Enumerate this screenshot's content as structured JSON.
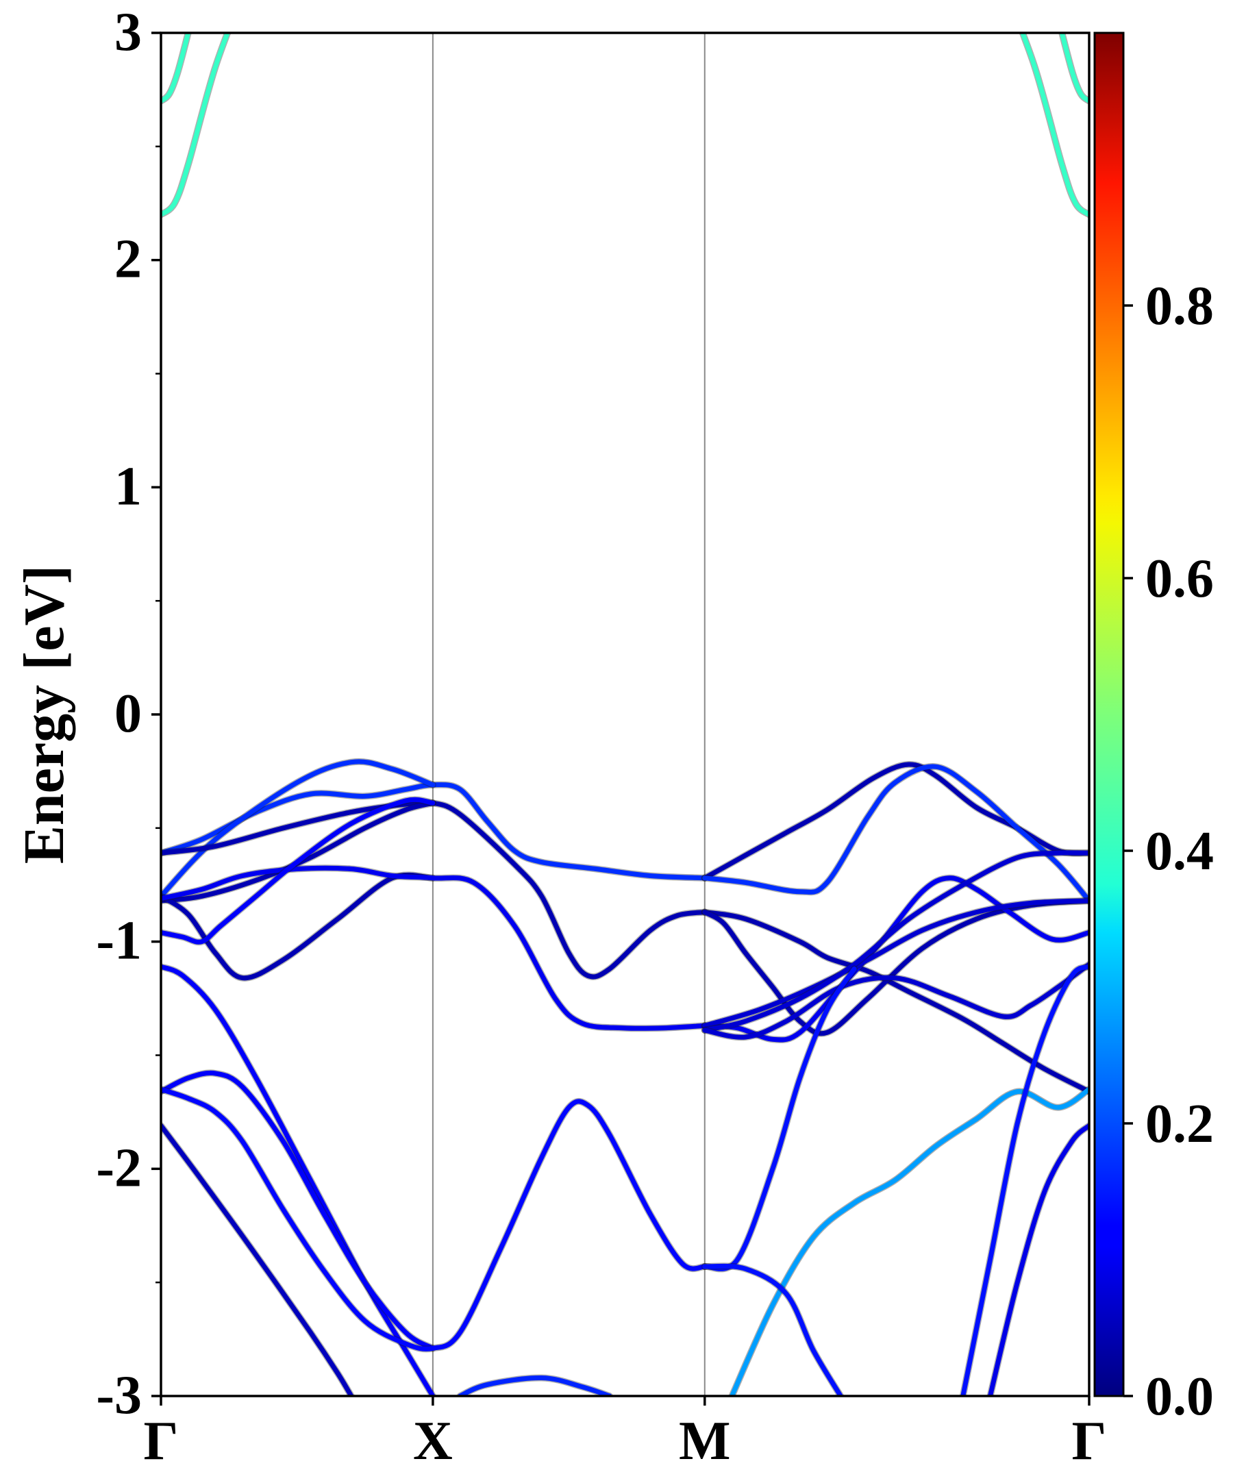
{
  "chart_data": {
    "type": "line",
    "title": "",
    "xlabel": "",
    "ylabel": "Energy [eV]",
    "ylim": [
      -3,
      3
    ],
    "y_ticks": [
      "-3",
      "-2",
      "-1",
      "0",
      "1",
      "2",
      "3"
    ],
    "y_minor_step": 0.5,
    "k_path": [
      {
        "label": "Γ",
        "k": 0
      },
      {
        "label": "X",
        "k": 1
      },
      {
        "label": "M",
        "k": 2
      },
      {
        "label": "Γ",
        "k": 3.414
      }
    ],
    "grid": "vertical lines at high-symmetry points",
    "colorbar": {
      "colormap": "jet",
      "range": [
        0,
        1
      ],
      "tick_labels": [
        "0.0",
        "0.2",
        "0.4",
        "0.6",
        "0.8"
      ]
    },
    "bands": [
      {
        "w": 0.43,
        "pts": [
          [
            0,
            2.2
          ],
          [
            0.05,
            2.25
          ],
          [
            0.1,
            2.42
          ],
          [
            0.2,
            2.85
          ],
          [
            0.31,
            3.2
          ]
        ]
      },
      {
        "w": 0.43,
        "pts": [
          [
            0,
            2.7
          ],
          [
            0.03,
            2.73
          ],
          [
            0.06,
            2.82
          ],
          [
            0.1,
            3.0
          ],
          [
            0.14,
            3.2
          ]
        ]
      },
      {
        "w": 0.43,
        "pts": [
          [
            3.414,
            2.2
          ],
          [
            3.364,
            2.25
          ],
          [
            3.314,
            2.42
          ],
          [
            3.214,
            2.85
          ],
          [
            3.104,
            3.2
          ]
        ]
      },
      {
        "w": 0.43,
        "pts": [
          [
            3.414,
            2.7
          ],
          [
            3.384,
            2.73
          ],
          [
            3.354,
            2.82
          ],
          [
            3.314,
            3.0
          ],
          [
            3.274,
            3.2
          ]
        ]
      },
      {
        "w": 0.17,
        "pts": [
          [
            0,
            -0.61
          ],
          [
            0.15,
            -0.55
          ],
          [
            0.35,
            -0.43
          ],
          [
            0.55,
            -0.35
          ],
          [
            0.75,
            -0.36
          ],
          [
            0.9,
            -0.33
          ],
          [
            1,
            -0.31
          ],
          [
            1.1,
            -0.33
          ],
          [
            1.2,
            -0.47
          ],
          [
            1.3,
            -0.6
          ],
          [
            1.4,
            -0.65
          ],
          [
            1.6,
            -0.68
          ],
          [
            1.8,
            -0.71
          ],
          [
            2,
            -0.72
          ]
        ]
      },
      {
        "w": 0.17,
        "pts": [
          [
            0,
            -0.8
          ],
          [
            0.2,
            -0.55
          ],
          [
            0.5,
            -0.3
          ],
          [
            0.7,
            -0.21
          ],
          [
            0.85,
            -0.24
          ],
          [
            1,
            -0.31
          ]
        ]
      },
      {
        "w": 0.05,
        "pts": [
          [
            0,
            -0.61
          ],
          [
            0.2,
            -0.58
          ],
          [
            0.45,
            -0.5
          ],
          [
            0.7,
            -0.43
          ],
          [
            0.9,
            -0.395
          ],
          [
            1,
            -0.39
          ],
          [
            1.1,
            -0.44
          ],
          [
            1.3,
            -0.66
          ],
          [
            1.4,
            -0.8
          ],
          [
            1.5,
            -1.05
          ],
          [
            1.57,
            -1.15
          ],
          [
            1.65,
            -1.12
          ],
          [
            1.8,
            -0.95
          ],
          [
            1.9,
            -0.885
          ],
          [
            2,
            -0.87
          ]
        ]
      },
      {
        "w": 0.05,
        "pts": [
          [
            0,
            -0.82
          ],
          [
            0.15,
            -0.8
          ],
          [
            0.35,
            -0.73
          ],
          [
            0.55,
            -0.63
          ],
          [
            0.75,
            -0.5
          ],
          [
            0.9,
            -0.42
          ],
          [
            1,
            -0.39
          ]
        ]
      },
      {
        "w": 0.05,
        "pts": [
          [
            0,
            -0.8
          ],
          [
            0.1,
            -0.88
          ],
          [
            0.2,
            -1.05
          ],
          [
            0.3,
            -1.16
          ],
          [
            0.45,
            -1.08
          ],
          [
            0.65,
            -0.9
          ],
          [
            0.85,
            -0.72
          ],
          [
            1,
            -0.72
          ]
        ]
      },
      {
        "w": 0.11,
        "pts": [
          [
            0,
            -0.81
          ],
          [
            0.15,
            -0.77
          ],
          [
            0.3,
            -0.71
          ],
          [
            0.5,
            -0.68
          ],
          [
            0.7,
            -0.68
          ],
          [
            0.85,
            -0.71
          ],
          [
            1,
            -0.72
          ],
          [
            1.15,
            -0.74
          ],
          [
            1.3,
            -0.93
          ],
          [
            1.45,
            -1.25
          ],
          [
            1.55,
            -1.36
          ],
          [
            1.7,
            -1.38
          ],
          [
            1.85,
            -1.38
          ],
          [
            2,
            -1.37
          ]
        ]
      },
      {
        "w": 0.12,
        "pts": [
          [
            0,
            -0.96
          ],
          [
            0.08,
            -0.98
          ],
          [
            0.15,
            -1.0
          ],
          [
            0.22,
            -0.93
          ],
          [
            0.35,
            -0.8
          ],
          [
            0.5,
            -0.65
          ],
          [
            0.7,
            -0.48
          ],
          [
            0.9,
            -0.38
          ],
          [
            1,
            -0.39
          ]
        ]
      },
      {
        "w": 0.05,
        "pts": [
          [
            2,
            -0.72
          ],
          [
            2.15,
            -0.62
          ],
          [
            2.3,
            -0.52
          ],
          [
            2.45,
            -0.42
          ],
          [
            2.62,
            -0.28
          ],
          [
            2.75,
            -0.22
          ],
          [
            2.85,
            -0.27
          ],
          [
            3.0,
            -0.41
          ],
          [
            3.15,
            -0.5
          ],
          [
            3.3,
            -0.6
          ],
          [
            3.414,
            -0.61
          ]
        ]
      },
      {
        "w": 0.17,
        "pts": [
          [
            2,
            -0.72
          ],
          [
            2.15,
            -0.74
          ],
          [
            2.35,
            -0.78
          ],
          [
            2.45,
            -0.74
          ],
          [
            2.6,
            -0.45
          ],
          [
            2.7,
            -0.3
          ],
          [
            2.85,
            -0.23
          ],
          [
            3.0,
            -0.34
          ],
          [
            3.15,
            -0.5
          ],
          [
            3.3,
            -0.66
          ],
          [
            3.414,
            -0.82
          ]
        ]
      },
      {
        "w": 0.05,
        "pts": [
          [
            2,
            -0.87
          ],
          [
            2.15,
            -0.9
          ],
          [
            2.35,
            -1.0
          ],
          [
            2.45,
            -1.07
          ],
          [
            2.6,
            -1.13
          ],
          [
            2.75,
            -1.22
          ],
          [
            2.95,
            -1.34
          ],
          [
            3.1,
            -1.45
          ],
          [
            3.25,
            -1.56
          ],
          [
            3.414,
            -1.66
          ]
        ]
      },
      {
        "w": 0.05,
        "pts": [
          [
            2,
            -0.87
          ],
          [
            2.07,
            -0.92
          ],
          [
            2.15,
            -1.05
          ],
          [
            2.25,
            -1.2
          ],
          [
            2.35,
            -1.35
          ],
          [
            2.45,
            -1.4
          ],
          [
            2.6,
            -1.25
          ],
          [
            2.8,
            -1.03
          ],
          [
            3.0,
            -0.9
          ],
          [
            3.2,
            -0.84
          ],
          [
            3.414,
            -0.82
          ]
        ]
      },
      {
        "w": 0.11,
        "pts": [
          [
            2,
            -1.37
          ],
          [
            2.12,
            -1.38
          ],
          [
            2.25,
            -1.43
          ],
          [
            2.35,
            -1.4
          ],
          [
            2.5,
            -1.2
          ],
          [
            2.65,
            -1.0
          ],
          [
            2.8,
            -0.78
          ],
          [
            2.9,
            -0.72
          ],
          [
            3.0,
            -0.77
          ],
          [
            3.12,
            -0.87
          ],
          [
            3.28,
            -0.99
          ],
          [
            3.414,
            -0.96
          ]
        ]
      },
      {
        "w": 0.08,
        "pts": [
          [
            2,
            -1.37
          ],
          [
            2.2,
            -1.3
          ],
          [
            2.4,
            -1.2
          ],
          [
            2.6,
            -1.08
          ],
          [
            2.8,
            -0.95
          ],
          [
            3.0,
            -0.87
          ],
          [
            3.2,
            -0.83
          ],
          [
            3.414,
            -0.82
          ]
        ]
      },
      {
        "w": 0.08,
        "pts": [
          [
            2,
            -1.39
          ],
          [
            2.15,
            -1.35
          ],
          [
            2.35,
            -1.25
          ],
          [
            2.55,
            -1.1
          ],
          [
            2.75,
            -0.9
          ],
          [
            2.95,
            -0.75
          ],
          [
            3.15,
            -0.63
          ],
          [
            3.3,
            -0.61
          ],
          [
            3.414,
            -0.61
          ]
        ]
      },
      {
        "w": 0.08,
        "pts": [
          [
            2,
            -1.39
          ],
          [
            2.15,
            -1.42
          ],
          [
            2.3,
            -1.35
          ],
          [
            2.5,
            -1.2
          ],
          [
            2.7,
            -1.16
          ],
          [
            2.9,
            -1.24
          ],
          [
            3.1,
            -1.33
          ],
          [
            3.2,
            -1.28
          ],
          [
            3.3,
            -1.2
          ],
          [
            3.414,
            -1.1
          ]
        ]
      },
      {
        "w": 0.14,
        "pts": [
          [
            2,
            -2.43
          ],
          [
            2.12,
            -2.4
          ],
          [
            2.25,
            -2.0
          ],
          [
            2.35,
            -1.6
          ],
          [
            2.45,
            -1.3
          ],
          [
            2.55,
            -1.12
          ]
        ]
      },
      {
        "w": 0.12,
        "pts": [
          [
            0,
            -1.11
          ],
          [
            0.08,
            -1.15
          ],
          [
            0.2,
            -1.3
          ],
          [
            0.35,
            -1.6
          ],
          [
            0.55,
            -2.05
          ],
          [
            0.75,
            -2.5
          ],
          [
            0.9,
            -2.8
          ],
          [
            1.0,
            -3.0
          ]
        ]
      },
      {
        "w": 0.12,
        "pts": [
          [
            0,
            -1.66
          ],
          [
            0.1,
            -1.6
          ],
          [
            0.2,
            -1.58
          ],
          [
            0.3,
            -1.64
          ],
          [
            0.45,
            -1.88
          ],
          [
            0.6,
            -2.2
          ],
          [
            0.75,
            -2.5
          ],
          [
            0.9,
            -2.72
          ],
          [
            1,
            -2.79
          ]
        ]
      },
      {
        "w": 0.13,
        "pts": [
          [
            0,
            -1.65
          ],
          [
            0.1,
            -1.69
          ],
          [
            0.2,
            -1.75
          ],
          [
            0.3,
            -1.88
          ],
          [
            0.45,
            -2.18
          ],
          [
            0.6,
            -2.45
          ],
          [
            0.75,
            -2.67
          ],
          [
            0.9,
            -2.77
          ],
          [
            1,
            -2.79
          ],
          [
            1.1,
            -2.72
          ],
          [
            1.25,
            -2.35
          ],
          [
            1.4,
            -1.95
          ],
          [
            1.5,
            -1.73
          ],
          [
            1.57,
            -1.72
          ],
          [
            1.65,
            -1.85
          ],
          [
            1.8,
            -2.2
          ],
          [
            1.92,
            -2.42
          ],
          [
            2,
            -2.43
          ]
        ]
      },
      {
        "w": 0.06,
        "pts": [
          [
            0,
            -1.81
          ],
          [
            0.15,
            -2.05
          ],
          [
            0.35,
            -2.38
          ],
          [
            0.55,
            -2.72
          ],
          [
            0.65,
            -2.9
          ],
          [
            0.7,
            -3.0
          ]
        ]
      },
      {
        "w": 0.16,
        "pts": [
          [
            1.1,
            -3.0
          ],
          [
            1.2,
            -2.95
          ],
          [
            1.4,
            -2.92
          ],
          [
            1.55,
            -2.96
          ],
          [
            1.65,
            -3.0
          ]
        ]
      },
      {
        "w": 0.28,
        "pts": [
          [
            2.1,
            -3.0
          ],
          [
            2.25,
            -2.6
          ],
          [
            2.4,
            -2.3
          ],
          [
            2.55,
            -2.15
          ],
          [
            2.7,
            -2.05
          ],
          [
            2.85,
            -1.9
          ],
          [
            3.0,
            -1.78
          ],
          [
            3.15,
            -1.66
          ],
          [
            3.3,
            -1.73
          ],
          [
            3.414,
            -1.65
          ]
        ]
      },
      {
        "w": 0.14,
        "pts": [
          [
            2,
            -2.43
          ],
          [
            2.15,
            -2.44
          ],
          [
            2.3,
            -2.55
          ],
          [
            2.4,
            -2.8
          ],
          [
            2.5,
            -3.0
          ]
        ]
      },
      {
        "w": 0.14,
        "pts": [
          [
            2.95,
            -3.0
          ],
          [
            3.05,
            -2.4
          ],
          [
            3.15,
            -1.8
          ],
          [
            3.25,
            -1.4
          ],
          [
            3.35,
            -1.15
          ],
          [
            3.414,
            -1.11
          ]
        ]
      },
      {
        "w": 0.1,
        "pts": [
          [
            3.05,
            -3.0
          ],
          [
            3.15,
            -2.5
          ],
          [
            3.25,
            -2.1
          ],
          [
            3.35,
            -1.88
          ],
          [
            3.414,
            -1.81
          ]
        ]
      }
    ]
  }
}
